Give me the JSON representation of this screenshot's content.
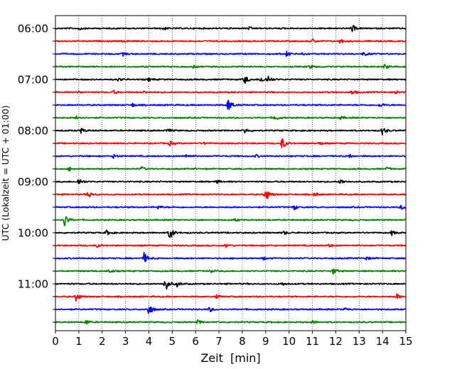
{
  "chart_data": {
    "type": "line",
    "xlabel": "Zeit  [min]",
    "ylabel": "UTC (Lokalzeit = UTC + 01:00)",
    "x_range": [
      0,
      15
    ],
    "x_ticks": [
      "0",
      "1",
      "2",
      "3",
      "4",
      "5",
      "6",
      "7",
      "8",
      "9",
      "10",
      "11",
      "12",
      "13",
      "14",
      "15"
    ],
    "y_tick_labels": [
      "06:00",
      "07:00",
      "08:00",
      "09:00",
      "10:00",
      "11:00"
    ],
    "rows_per_hour": 4,
    "grid": "vertical-dotted",
    "colors": [
      "#000000",
      "#ff0000",
      "#0000ff",
      "#008000"
    ],
    "traces": [
      {
        "start": "06:00",
        "events": [
          [
            12.7,
            0.45
          ],
          [
            4.6,
            0.2
          ],
          [
            1.0,
            0.2
          ],
          [
            8.3,
            0.15
          ]
        ]
      },
      {
        "start": "06:15",
        "events": [
          [
            11.0,
            0.25
          ],
          [
            12.2,
            0.3
          ],
          [
            2.9,
            0.15
          ]
        ]
      },
      {
        "start": "06:30",
        "events": [
          [
            9.9,
            0.3
          ],
          [
            13.2,
            0.25
          ],
          [
            2.9,
            0.2
          ],
          [
            10.6,
            0.2
          ]
        ]
      },
      {
        "start": "06:45",
        "events": [
          [
            14.1,
            0.3
          ],
          [
            10.9,
            0.2
          ],
          [
            5.9,
            0.15
          ]
        ]
      },
      {
        "start": "07:00",
        "events": [
          [
            8.1,
            0.55
          ],
          [
            8.8,
            0.4
          ],
          [
            9.1,
            0.45
          ],
          [
            2.7,
            0.2
          ],
          [
            4.0,
            0.2
          ]
        ]
      },
      {
        "start": "07:15",
        "events": [
          [
            12.7,
            0.3
          ],
          [
            14.5,
            0.3
          ],
          [
            1.0,
            0.15
          ],
          [
            2.5,
            0.2
          ],
          [
            3.8,
            0.15
          ]
        ]
      },
      {
        "start": "07:30",
        "events": [
          [
            7.4,
            0.9
          ],
          [
            3.3,
            0.2
          ],
          [
            13.9,
            0.25
          ]
        ]
      },
      {
        "start": "07:45",
        "events": [
          [
            0.9,
            0.3
          ],
          [
            9.4,
            0.35
          ],
          [
            12.2,
            0.2
          ]
        ]
      },
      {
        "start": "08:00",
        "events": [
          [
            14.0,
            0.5
          ],
          [
            1.1,
            0.3
          ],
          [
            8.1,
            0.3
          ],
          [
            4.8,
            0.25
          ]
        ]
      },
      {
        "start": "08:15",
        "events": [
          [
            9.7,
            0.75
          ],
          [
            4.9,
            0.3
          ],
          [
            6.4,
            0.15
          ],
          [
            11.3,
            0.2
          ]
        ]
      },
      {
        "start": "08:30",
        "events": [
          [
            2.5,
            0.25
          ],
          [
            5.6,
            0.25
          ],
          [
            12.6,
            0.2
          ],
          [
            8.6,
            0.15
          ]
        ]
      },
      {
        "start": "08:45",
        "events": [
          [
            0.6,
            0.2
          ],
          [
            3.7,
            0.25
          ],
          [
            14.2,
            0.2
          ]
        ]
      },
      {
        "start": "09:00",
        "events": [
          [
            1.0,
            0.45
          ],
          [
            12.2,
            0.35
          ],
          [
            6.9,
            0.2
          ]
        ]
      },
      {
        "start": "09:15",
        "events": [
          [
            9.0,
            1.0
          ],
          [
            1.4,
            0.5
          ],
          [
            11.1,
            0.25
          ]
        ]
      },
      {
        "start": "09:30",
        "events": [
          [
            10.2,
            0.35
          ],
          [
            14.8,
            0.3
          ],
          [
            4.4,
            0.2
          ]
        ]
      },
      {
        "start": "09:45",
        "events": [
          [
            0.4,
            0.8
          ],
          [
            7.7,
            0.15
          ]
        ]
      },
      {
        "start": "10:00",
        "events": [
          [
            4.9,
            0.9
          ],
          [
            2.2,
            0.3
          ],
          [
            14.4,
            0.3
          ],
          [
            9.8,
            0.2
          ]
        ]
      },
      {
        "start": "10:15",
        "events": [
          [
            7.3,
            0.25
          ],
          [
            1.8,
            0.2
          ],
          [
            11.7,
            0.2
          ]
        ]
      },
      {
        "start": "10:30",
        "events": [
          [
            3.8,
            0.7
          ],
          [
            8.9,
            0.2
          ],
          [
            13.3,
            0.2
          ]
        ]
      },
      {
        "start": "10:45",
        "events": [
          [
            11.9,
            0.4
          ],
          [
            2.3,
            0.25
          ],
          [
            6.6,
            0.2
          ]
        ]
      },
      {
        "start": "11:00",
        "events": [
          [
            4.7,
            1.0
          ],
          [
            5.2,
            0.35
          ],
          [
            9.7,
            0.2
          ]
        ]
      },
      {
        "start": "11:15",
        "events": [
          [
            0.9,
            0.6
          ],
          [
            14.6,
            0.35
          ],
          [
            6.9,
            0.2
          ]
        ]
      },
      {
        "start": "11:30",
        "events": [
          [
            4.0,
            0.8
          ],
          [
            6.6,
            0.3
          ],
          [
            12.4,
            0.2
          ]
        ]
      },
      {
        "start": "11:45",
        "events": [
          [
            1.3,
            0.35
          ],
          [
            6.1,
            0.25
          ],
          [
            11.0,
            0.2
          ]
        ]
      }
    ]
  }
}
